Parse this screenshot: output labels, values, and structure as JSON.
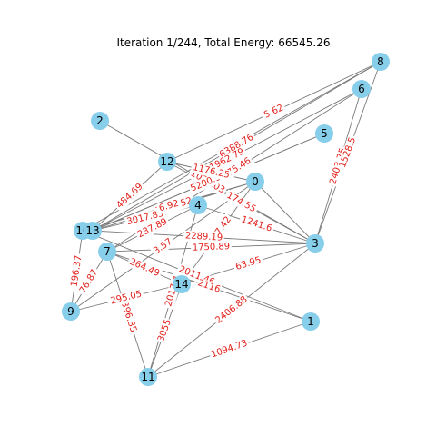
{
  "title": "Iteration 1/244, Total Energy: 66545.26",
  "colors": {
    "node": "#87ceeb",
    "edge": "#7a7a7a",
    "edge_label": "#e0201b"
  },
  "nodes": [
    "0",
    "1",
    "2",
    "3",
    "4",
    "5",
    "6",
    "7",
    "8",
    "9",
    "10",
    "11",
    "12",
    "13",
    "14"
  ],
  "edges": [
    {
      "u": "2",
      "v": "3",
      "label": "1020.03"
    },
    {
      "u": "8",
      "v": "13",
      "label": "6388.76"
    },
    {
      "u": "6",
      "v": "13",
      "label": "1962.79"
    },
    {
      "u": "6",
      "v": "7",
      "label": "1475.46"
    },
    {
      "u": "5",
      "v": "13",
      "label": "5200.94"
    },
    {
      "u": "0",
      "v": "13",
      "label": "3036.52"
    },
    {
      "u": "12",
      "v": "13",
      "label": "484.69"
    },
    {
      "u": "12",
      "v": "0",
      "label": "1176.25"
    },
    {
      "u": "12",
      "v": "3",
      "label": "174.55"
    },
    {
      "u": "6",
      "v": "3",
      "label": "2403.75"
    },
    {
      "u": "8",
      "v": "3",
      "label": "1528.5"
    },
    {
      "u": "0",
      "v": "14",
      "label": "5867.42"
    },
    {
      "u": "4",
      "v": "13",
      "label": "3017.85"
    },
    {
      "u": "4",
      "v": "7",
      "label": "237.89"
    },
    {
      "u": "0",
      "v": "10",
      "label": "6.92"
    },
    {
      "u": "4",
      "v": "3",
      "label": "1241.6"
    },
    {
      "u": "4",
      "v": "11",
      "label": "2017.4"
    },
    {
      "u": "13",
      "v": "3",
      "label": "2289.19"
    },
    {
      "u": "7",
      "v": "3",
      "label": "1750.89"
    },
    {
      "u": "7",
      "v": "14",
      "label": "264.49"
    },
    {
      "u": "14",
      "v": "3",
      "label": "63.95"
    },
    {
      "u": "10",
      "v": "1",
      "label": "2011.46"
    },
    {
      "u": "7",
      "v": "1",
      "label": "2116"
    },
    {
      "u": "7",
      "v": "11",
      "label": "1396.35"
    },
    {
      "u": "10",
      "v": "9",
      "label": "196.37"
    },
    {
      "u": "7",
      "v": "9",
      "label": "76.87"
    },
    {
      "u": "9",
      "v": "14",
      "label": "295.05"
    },
    {
      "u": "11",
      "v": "3",
      "label": "2406.88"
    },
    {
      "u": "11",
      "v": "1",
      "label": "1094.73"
    },
    {
      "u": "11",
      "v": "14",
      "label": "3055"
    },
    {
      "u": "0",
      "v": "9",
      "label": "3.57"
    },
    {
      "u": "0",
      "v": "3",
      "label": ""
    },
    {
      "u": "8",
      "v": "12",
      "label": "5.62"
    },
    {
      "u": "13",
      "v": "5",
      "label": ""
    },
    {
      "u": "8",
      "v": "10",
      "label": ""
    }
  ]
}
